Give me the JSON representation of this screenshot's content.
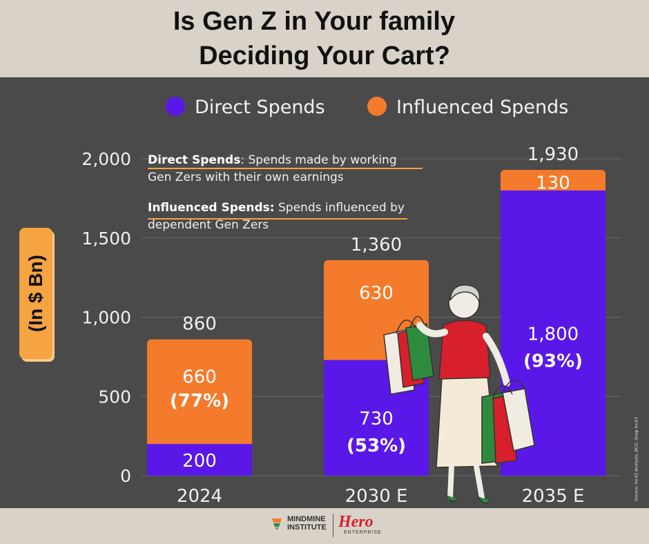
{
  "title_lines": [
    "Is Gen Z in Your family",
    "Deciding Your Cart?"
  ],
  "legend": {
    "direct": {
      "label": "Direct Spends",
      "color": "#5a18e8"
    },
    "influenced": {
      "label": "Influenced Spends",
      "color": "#f47b2c"
    }
  },
  "notes": {
    "direct": {
      "term": "Direct Spends",
      "text": ": Spends made by working Gen Zers with their own earnings"
    },
    "influenced": {
      "term": "Influenced Spends:",
      "text": " Spends influenced by dependent Gen Zers"
    }
  },
  "source": "Source: Inc42 Analysis, BCG, Snap Inc43",
  "footer": {
    "mindmine_line1": "MINDMINE",
    "mindmine_line2": "INSTITUTE",
    "hero": "Hero",
    "hero_sub": "ENTERPRISE"
  },
  "chart_data": {
    "type": "bar",
    "stacked": true,
    "categories": [
      "2024",
      "2030 E",
      "2035 E"
    ],
    "series": [
      {
        "name": "Direct Spends",
        "values": [
          200,
          730,
          1800
        ],
        "labels": [
          "200",
          "730",
          "1,800"
        ],
        "pct": [
          "",
          "(53%)",
          "(93%)"
        ],
        "color": "#5a18e8"
      },
      {
        "name": "Influenced Spends",
        "values": [
          660,
          630,
          130
        ],
        "labels": [
          "660",
          "630",
          "130"
        ],
        "pct": [
          "(77%)",
          "",
          ""
        ],
        "color": "#f47b2c"
      }
    ],
    "totals": [
      "860",
      "1,360",
      "1,930"
    ],
    "ylabel": "(In $ Bn)",
    "ylim": [
      0,
      2000
    ],
    "yticks": [
      0,
      500,
      1000,
      1500,
      2000
    ],
    "ytick_labels": [
      "0",
      "500",
      "1,000",
      "1,500",
      "2,000"
    ],
    "grid": true,
    "legend_position": "top"
  }
}
